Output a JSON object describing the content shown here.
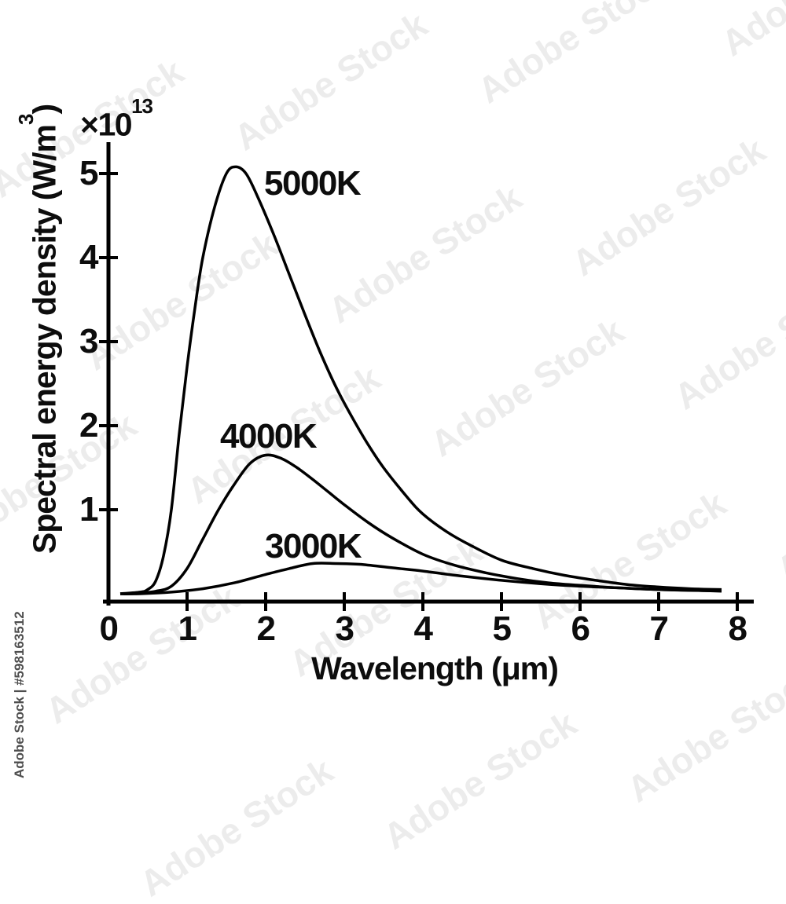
{
  "watermark": {
    "diagonal_text": "Adobe Stock",
    "credit_text": "Adobe Stock | #598163512"
  },
  "axes": {
    "y_scale_prefix": "×10",
    "y_scale_exponent": "13",
    "y_title_pre": "Spectral energy density (W/m",
    "y_title_sup": "3",
    "y_title_post": ")",
    "x_title": "Wavelength (μm)"
  },
  "chart_data": {
    "type": "line",
    "title": "",
    "xlabel": "Wavelength (μm)",
    "ylabel": "Spectral energy density (W/m3), ×10^13",
    "x_ticks": [
      0,
      1,
      2,
      3,
      4,
      5,
      6,
      7,
      8
    ],
    "y_ticks": [
      1,
      2,
      3,
      4,
      5
    ],
    "xlim": [
      0,
      8.2
    ],
    "ylim": [
      0,
      5.45
    ],
    "grid": false,
    "legend_position": "inline-labels",
    "line_color": "#000000",
    "series": [
      {
        "name": "5000K",
        "x": [
          0.15,
          0.4,
          0.5,
          0.6,
          0.7,
          0.8,
          0.9,
          1.0,
          1.1,
          1.2,
          1.35,
          1.5,
          1.62,
          1.75,
          1.9,
          2.1,
          2.3,
          2.5,
          2.7,
          2.9,
          3.1,
          3.3,
          3.5,
          3.8,
          4.0,
          4.3,
          4.6,
          5.0,
          5.4,
          5.8,
          6.2,
          6.6,
          7.0,
          7.4,
          7.8
        ],
        "y": [
          0,
          0.02,
          0.05,
          0.15,
          0.45,
          1.0,
          1.9,
          2.7,
          3.4,
          4.0,
          4.6,
          5.0,
          5.08,
          5.0,
          4.72,
          4.28,
          3.8,
          3.32,
          2.86,
          2.45,
          2.1,
          1.78,
          1.5,
          1.15,
          0.95,
          0.74,
          0.58,
          0.4,
          0.3,
          0.22,
          0.16,
          0.11,
          0.08,
          0.06,
          0.05
        ],
        "peak": {
          "x": 1.62,
          "y": 5.08
        }
      },
      {
        "name": "4000K",
        "x": [
          0.15,
          0.3,
          0.6,
          0.8,
          1.0,
          1.2,
          1.4,
          1.6,
          1.8,
          2.0,
          2.2,
          2.4,
          2.6,
          2.8,
          3.0,
          3.3,
          3.6,
          4.0,
          4.4,
          4.8,
          5.2,
          5.6,
          6.0,
          6.5,
          7.0,
          7.4,
          7.8
        ],
        "y": [
          0,
          0,
          0.03,
          0.09,
          0.3,
          0.65,
          1.0,
          1.3,
          1.55,
          1.65,
          1.61,
          1.5,
          1.36,
          1.21,
          1.06,
          0.85,
          0.67,
          0.47,
          0.34,
          0.25,
          0.18,
          0.13,
          0.1,
          0.07,
          0.05,
          0.04,
          0.035
        ],
        "peak": {
          "x": 2.0,
          "y": 1.65
        }
      },
      {
        "name": "3000K",
        "x": [
          0.15,
          0.4,
          0.8,
          1.2,
          1.6,
          2.0,
          2.3,
          2.6,
          2.9,
          3.2,
          3.6,
          4.0,
          4.5,
          5.0,
          5.5,
          6.0,
          6.5,
          7.0,
          7.5,
          7.8
        ],
        "y": [
          0,
          0,
          0.02,
          0.06,
          0.13,
          0.23,
          0.3,
          0.36,
          0.36,
          0.35,
          0.31,
          0.27,
          0.21,
          0.16,
          0.12,
          0.09,
          0.07,
          0.05,
          0.04,
          0.03
        ],
        "peak": {
          "x": 2.55,
          "y": 0.36
        }
      }
    ]
  }
}
